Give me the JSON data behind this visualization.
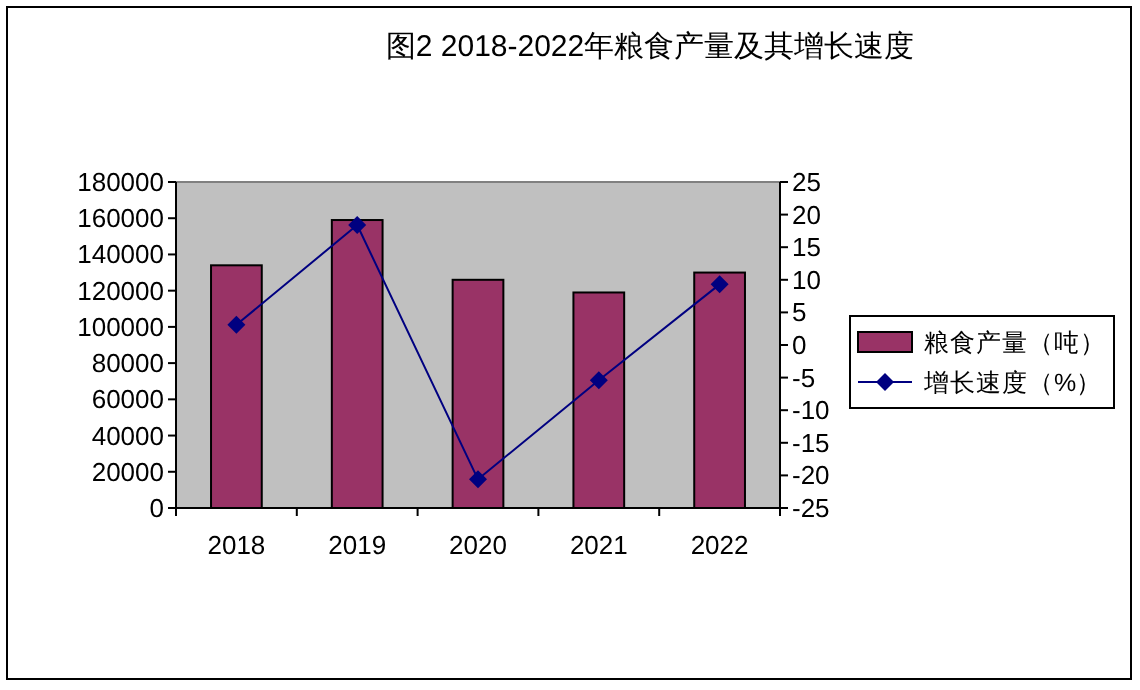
{
  "chart_data": {
    "type": "bar",
    "title": "图2  2018-2022年粮食产量及其增长速度",
    "categories": [
      "2018",
      "2019",
      "2020",
      "2021",
      "2022"
    ],
    "series": [
      {
        "name": "粮食产量（吨）",
        "color": "#993366",
        "values": [
          134000,
          159000,
          126000,
          119000,
          130000
        ]
      },
      {
        "name": "增长速度（%）",
        "type": "line",
        "axis": "y2",
        "color": "#000080",
        "marker": "diamond",
        "values": [
          3.1,
          18.4,
          -20.6,
          -5.4,
          9.3
        ]
      }
    ],
    "ylim": [
      0,
      180000
    ],
    "yticks": [
      0,
      20000,
      40000,
      60000,
      80000,
      100000,
      120000,
      140000,
      160000,
      180000
    ],
    "y2lim": [
      -25,
      25
    ],
    "y2ticks": [
      -25,
      -20,
      -15,
      -10,
      -5,
      0,
      5,
      10,
      15,
      20,
      25
    ],
    "grid": false,
    "legend": "right"
  }
}
